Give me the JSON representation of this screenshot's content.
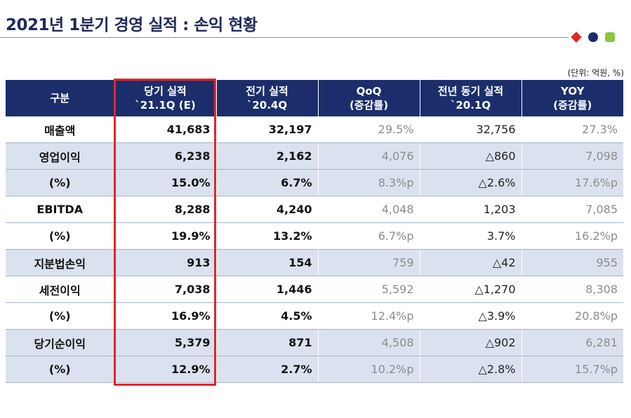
{
  "title": "2021년 1분기 경영 실적 : 손익 현황",
  "unit_note": "(단위: 억원, %)",
  "colors": {
    "header_bg": "#1b2e6b",
    "shade": "#dbe2ef",
    "highlight": "#e0262b",
    "dot1": "#e0262b",
    "dot2": "#1b2e6b",
    "dot3": "#8cc63f"
  },
  "headers": [
    {
      "line1": "구분",
      "line2": ""
    },
    {
      "line1": "당기 실적",
      "line2": "`21.1Q (E)"
    },
    {
      "line1": "전기 실적",
      "line2": "`20.4Q"
    },
    {
      "line1": "QoQ",
      "line2": "(증감률)"
    },
    {
      "line1": "전년 동기 실적",
      "line2": "`20.1Q"
    },
    {
      "line1": "YOY",
      "line2": "(증감률)"
    }
  ],
  "rows": [
    {
      "label": "매출액",
      "cur": "41,683",
      "prev": "32,197",
      "qoq": "29.5%",
      "prev_year": "32,756",
      "yoy": "27.3%"
    },
    {
      "label": "영업이익",
      "cur": "6,238",
      "prev": "2,162",
      "qoq": "4,076",
      "prev_year": "△860",
      "yoy": "7,098"
    },
    {
      "label": "(%)",
      "cur": "15.0%",
      "prev": "6.7%",
      "qoq": "8.3%p",
      "prev_year": "△2.6%",
      "yoy": "17.6%p"
    },
    {
      "label": "EBITDA",
      "cur": "8,288",
      "prev": "4,240",
      "qoq": "4,048",
      "prev_year": "1,203",
      "yoy": "7,085"
    },
    {
      "label": "(%)",
      "cur": "19.9%",
      "prev": "13.2%",
      "qoq": "6.7%p",
      "prev_year": "3.7%",
      "yoy": "16.2%p"
    },
    {
      "label": "지분법손익",
      "cur": "913",
      "prev": "154",
      "qoq": "759",
      "prev_year": "△42",
      "yoy": "955"
    },
    {
      "label": "세전이익",
      "cur": "7,038",
      "prev": "1,446",
      "qoq": "5,592",
      "prev_year": "△1,270",
      "yoy": "8,308"
    },
    {
      "label": "(%)",
      "cur": "16.9%",
      "prev": "4.5%",
      "qoq": "12.4%p",
      "prev_year": "△3.9%",
      "yoy": "20.8%p"
    },
    {
      "label": "당기순이익",
      "cur": "5,379",
      "prev": "871",
      "qoq": "4,508",
      "prev_year": "△902",
      "yoy": "6,281"
    },
    {
      "label": "(%)",
      "cur": "12.9%",
      "prev": "2.7%",
      "qoq": "10.2%p",
      "prev_year": "△2.8%",
      "yoy": "15.7%p"
    }
  ]
}
